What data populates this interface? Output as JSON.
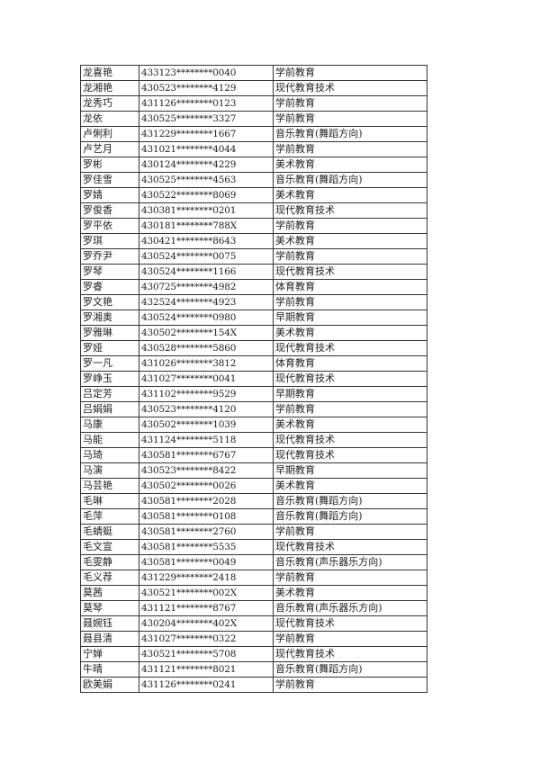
{
  "rows": [
    [
      "龙喜艳",
      "433123********0040",
      "学前教育"
    ],
    [
      "龙湘艳",
      "430523********4129",
      "现代教育技术"
    ],
    [
      "龙秀巧",
      "431126********0123",
      "学前教育"
    ],
    [
      "龙依",
      "430525********3327",
      "学前教育"
    ],
    [
      "卢俐利",
      "431229********1667",
      "音乐教育(舞蹈方向)"
    ],
    [
      "卢艺月",
      "431021********4044",
      "学前教育"
    ],
    [
      "罗彬",
      "430124********4229",
      "美术教育"
    ],
    [
      "罗佳雪",
      "430525********4563",
      "音乐教育(舞蹈方向)"
    ],
    [
      "罗婧",
      "430522********8069",
      "美术教育"
    ],
    [
      "罗俊香",
      "430381********0201",
      "现代教育技术"
    ],
    [
      "罗平依",
      "430181********788X",
      "学前教育"
    ],
    [
      "罗琪",
      "430421********8643",
      "美术教育"
    ],
    [
      "罗乔尹",
      "430524********0075",
      "学前教育"
    ],
    [
      "罗琴",
      "430524********1166",
      "现代教育技术"
    ],
    [
      "罗睿",
      "430725********4982",
      "体育教育"
    ],
    [
      "罗文艳",
      "432524********4923",
      "学前教育"
    ],
    [
      "罗湘奥",
      "430524********0980",
      "早期教育"
    ],
    [
      "罗雅琳",
      "430502********154X",
      "美术教育"
    ],
    [
      "罗娅",
      "430528********5860",
      "现代教育技术"
    ],
    [
      "罗一凡",
      "431026********3812",
      "体育教育"
    ],
    [
      "罗峥玉",
      "431027********0041",
      "现代教育技术"
    ],
    [
      "吕定芳",
      "431102********9529",
      "早期教育"
    ],
    [
      "吕娟娟",
      "430523********4120",
      "学前教育"
    ],
    [
      "马康",
      "430502********1039",
      "美术教育"
    ],
    [
      "马能",
      "431124********5118",
      "现代教育技术"
    ],
    [
      "马琦",
      "430581********6767",
      "现代教育技术"
    ],
    [
      "马演",
      "430523********8422",
      "早期教育"
    ],
    [
      "马芸艳",
      "430502********0026",
      "美术教育"
    ],
    [
      "毛琳",
      "430581********2028",
      "音乐教育(舞蹈方向)"
    ],
    [
      "毛萍",
      "430581********0108",
      "音乐教育(舞蹈方向)"
    ],
    [
      "毛蜻蜓",
      "430581********2760",
      "学前教育"
    ],
    [
      "毛文宣",
      "430581********5535",
      "现代教育技术"
    ],
    [
      "毛雯静",
      "430581********0049",
      "音乐教育(声乐器乐方向)"
    ],
    [
      "毛义荐",
      "431229********2418",
      "学前教育"
    ],
    [
      "莫茜",
      "430521********002X",
      "美术教育"
    ],
    [
      "莫琴",
      "431121********8767",
      "音乐教育(声乐器乐方向)"
    ],
    [
      "聂婉钰",
      "430204********402X",
      "现代教育技术"
    ],
    [
      "聂县清",
      "431027********0322",
      "学前教育"
    ],
    [
      "宁婵",
      "430521********5708",
      "现代教育技术"
    ],
    [
      "牛晴",
      "431121********8021",
      "音乐教育(舞蹈方向)"
    ],
    [
      "欧美娟",
      "431126********0241",
      "学前教育"
    ]
  ]
}
